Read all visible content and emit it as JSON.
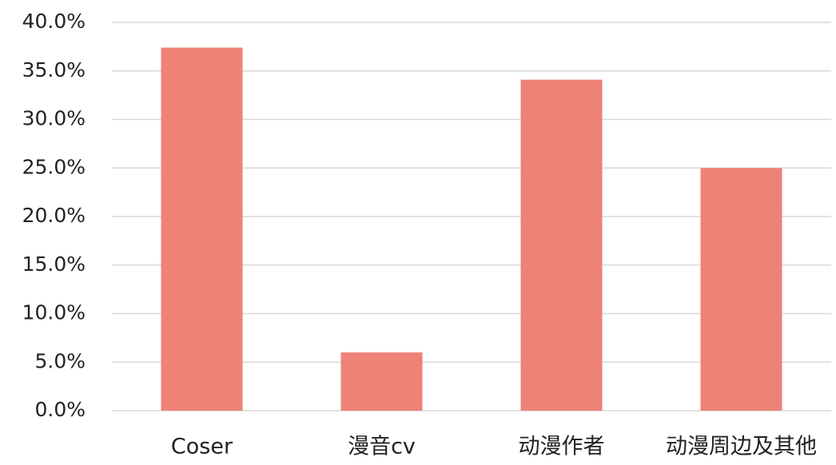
{
  "chart_data": {
    "type": "bar",
    "categories": [
      "Coser",
      "漫音cv",
      "动漫作者",
      "动漫周边及其他"
    ],
    "values": [
      37.4,
      6.0,
      34.1,
      25.0
    ],
    "color": "#ee8276",
    "ylim": [
      0,
      40
    ],
    "yticks": [
      {
        "value": 0,
        "label": "0.0%"
      },
      {
        "value": 5,
        "label": "5.0%"
      },
      {
        "value": 10,
        "label": "10.0%"
      },
      {
        "value": 15,
        "label": "15.0%"
      },
      {
        "value": 20,
        "label": "20.0%"
      },
      {
        "value": 25,
        "label": "25.0%"
      },
      {
        "value": 30,
        "label": "30.0%"
      },
      {
        "value": 35,
        "label": "35.0%"
      },
      {
        "value": 40,
        "label": "40.0%"
      }
    ],
    "grid": true
  }
}
